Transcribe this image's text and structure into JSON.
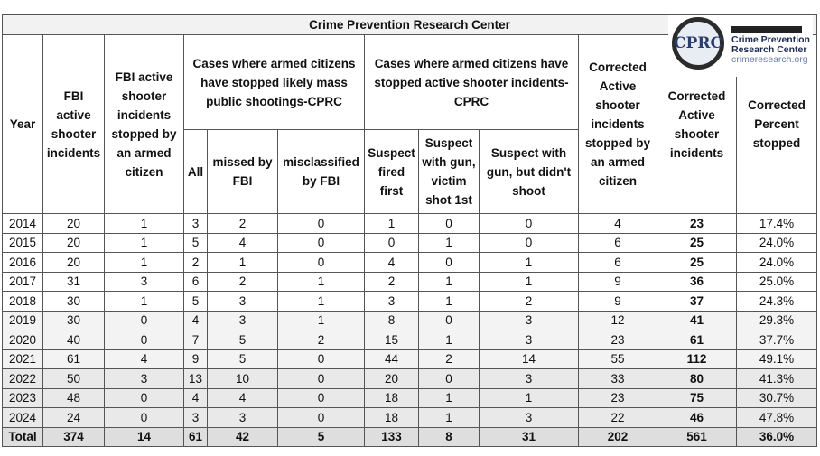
{
  "title": "Crime Prevention Research Center",
  "logo": {
    "mark": "CPRC",
    "name_line1": "Crime Prevention",
    "name_line2": "Research Center",
    "url": "crimeresearch.org"
  },
  "table": {
    "group_headers": [
      "Cases where armed citizens have stopped likely mass public shootings-CPRC",
      "Cases where armed citizens have stopped active shooter incidents-CPRC"
    ],
    "headers": [
      "Year",
      "FBI active shooter incidents",
      "FBI active shooter incidents stopped by an armed citizen",
      "All",
      "missed by FBI",
      "misclassified by FBI",
      "Suspect fired first",
      "Suspect with gun, victim shot 1st",
      "Suspect with gun, but didn't shoot",
      "Corrected Active shooter incidents stopped by an armed citizen",
      "Corrected Active shooter incidents",
      "Corrected Percent stopped"
    ],
    "rows": [
      [
        2014,
        20,
        1,
        3,
        2,
        0,
        1,
        0,
        0,
        4,
        23,
        "17.4%"
      ],
      [
        2015,
        20,
        1,
        5,
        4,
        0,
        0,
        1,
        0,
        6,
        25,
        "24.0%"
      ],
      [
        2016,
        20,
        1,
        2,
        1,
        0,
        4,
        0,
        1,
        6,
        25,
        "24.0%"
      ],
      [
        2017,
        31,
        3,
        6,
        2,
        1,
        2,
        1,
        1,
        9,
        36,
        "25.0%"
      ],
      [
        2018,
        30,
        1,
        5,
        3,
        1,
        3,
        1,
        2,
        9,
        37,
        "24.3%"
      ],
      [
        2019,
        30,
        0,
        4,
        3,
        1,
        8,
        0,
        3,
        12,
        41,
        "29.3%"
      ],
      [
        2020,
        40,
        0,
        7,
        5,
        2,
        15,
        1,
        3,
        23,
        61,
        "37.7%"
      ],
      [
        2021,
        61,
        4,
        9,
        5,
        0,
        44,
        2,
        14,
        55,
        112,
        "49.1%"
      ],
      [
        2022,
        50,
        3,
        13,
        10,
        0,
        20,
        0,
        3,
        33,
        80,
        "41.3%"
      ],
      [
        2023,
        48,
        0,
        4,
        4,
        0,
        18,
        1,
        1,
        23,
        75,
        "30.7%"
      ],
      [
        2024,
        24,
        0,
        3,
        3,
        0,
        18,
        1,
        3,
        22,
        46,
        "47.8%"
      ],
      [
        "Total",
        374,
        14,
        61,
        42,
        5,
        133,
        8,
        31,
        202,
        561,
        "36.0%"
      ]
    ]
  }
}
